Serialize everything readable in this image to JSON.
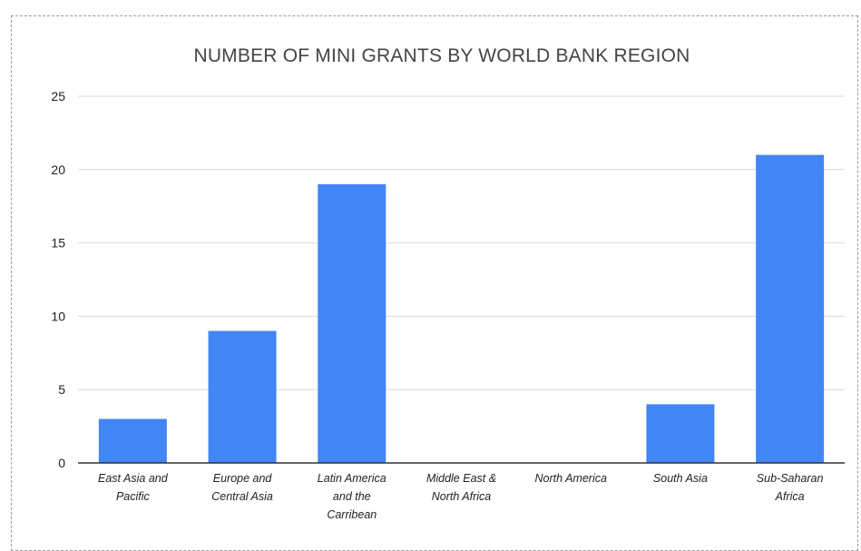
{
  "chart_data": {
    "type": "bar",
    "title": "NUMBER OF MINI GRANTS BY WORLD BANK REGION",
    "xlabel": "",
    "ylabel": "",
    "categories": [
      [
        "East Asia and",
        "Pacific"
      ],
      [
        "Europe and",
        "Central Asia"
      ],
      [
        "Latin America",
        "and the",
        "Carribean"
      ],
      [
        "Middle East &",
        "North Africa"
      ],
      [
        "North America"
      ],
      [
        "South Asia"
      ],
      [
        "Sub-Saharan",
        "Africa"
      ]
    ],
    "values": [
      3,
      9,
      19,
      0,
      0,
      4,
      21
    ],
    "ylim": [
      0,
      25
    ],
    "yticks": [
      "0",
      "5",
      "10",
      "15",
      "20",
      "25"
    ],
    "grid": true,
    "legend": "none",
    "bar_color": "#4285f4",
    "grid_color": "#d9d9d9",
    "axis_color": "#333333"
  }
}
